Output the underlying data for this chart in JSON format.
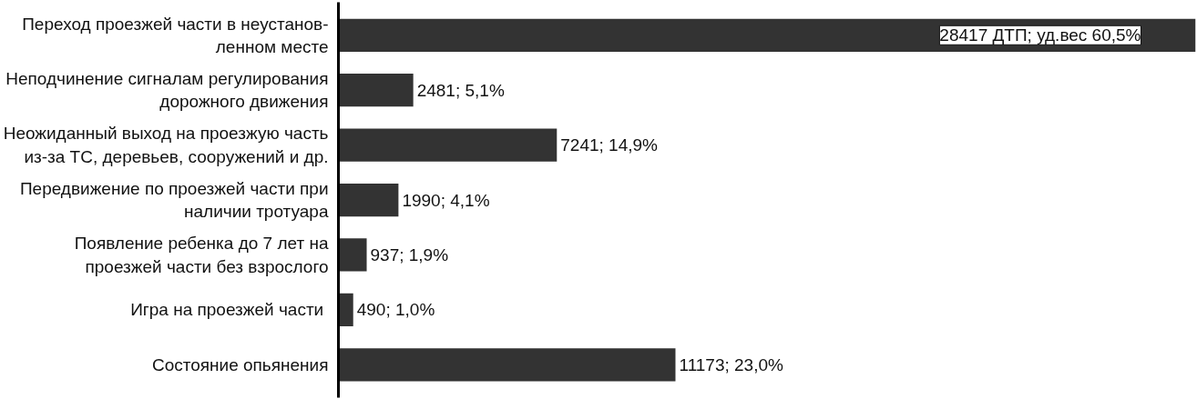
{
  "chart_data": {
    "type": "bar",
    "orientation": "horizontal",
    "categories": [
      "Переход проезжей части в неустанов-\nленном месте",
      "Неподчинение сигналам регулирования\nдорожного движения",
      "Неожиданный выход на проезжую часть\nиз-за ТС, деревьев, сооружений и др.",
      "Передвижение по проезжей части при\nналичии тротуара",
      "Появление ребенка до 7 лет на\nпроезжей части без взрослого",
      "Игра на  проезжей части",
      "Состояние опьянения"
    ],
    "values": [
      28417,
      2481,
      7241,
      1990,
      937,
      490,
      11173
    ],
    "value_labels": [
      "28417 ДТП; уд.вес 60,5%",
      "2481; 5,1%",
      "7241; 14,9%",
      "1990; 4,1%",
      "937; 1,9%",
      "490; 1,0%",
      "11173; 23,0%"
    ],
    "color": "#333333"
  }
}
